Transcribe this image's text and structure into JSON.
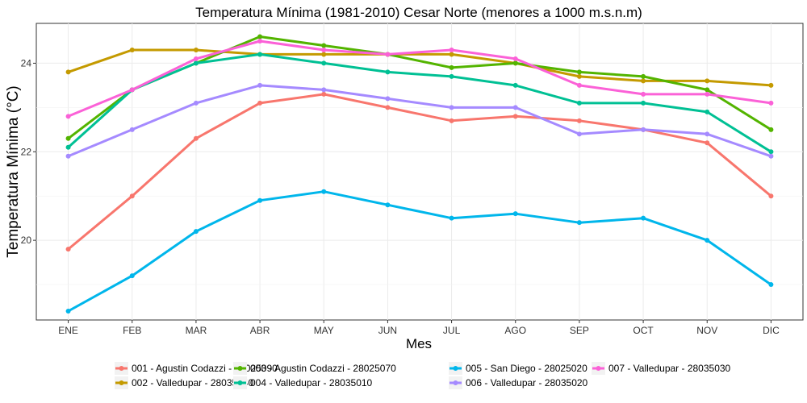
{
  "chart_data": {
    "type": "line",
    "title": "Temperatura Mínima (1981-2010) Cesar Norte (menores a 1000 m.s.n.m)",
    "xlabel": "Mes",
    "ylabel": "Temperatura Mínima (°C)",
    "categories": [
      "ENE",
      "FEB",
      "MAR",
      "ABR",
      "MAY",
      "JUN",
      "JUL",
      "AGO",
      "SEP",
      "OCT",
      "NOV",
      "DIC"
    ],
    "ylim": [
      18.2,
      24.9
    ],
    "yticks": [
      20,
      22,
      24
    ],
    "grid": true,
    "legend_position": "bottom",
    "series": [
      {
        "name": "001 - Agustin Codazzi - 28025090",
        "color": "#F8766D",
        "values": [
          19.8,
          21.0,
          22.3,
          23.1,
          23.3,
          23.0,
          22.7,
          22.8,
          22.7,
          22.5,
          22.2,
          21.0
        ]
      },
      {
        "name": "002 - Valledupar - 28035040",
        "color": "#C49A00",
        "values": [
          23.8,
          24.3,
          24.3,
          24.2,
          24.2,
          24.2,
          24.2,
          24.0,
          23.7,
          23.6,
          23.6,
          23.5
        ]
      },
      {
        "name": "003 - Agustin Codazzi - 28025070",
        "color": "#53B400",
        "values": [
          22.3,
          23.4,
          24.0,
          24.6,
          24.4,
          24.2,
          23.9,
          24.0,
          23.8,
          23.7,
          23.4,
          22.5
        ]
      },
      {
        "name": "004 - Valledupar - 28035010",
        "color": "#00C094",
        "values": [
          22.1,
          23.4,
          24.0,
          24.2,
          24.0,
          23.8,
          23.7,
          23.5,
          23.1,
          23.1,
          22.9,
          22.0
        ]
      },
      {
        "name": "005 - San Diego - 28025020",
        "color": "#00B6EB",
        "values": [
          18.4,
          19.2,
          20.2,
          20.9,
          21.1,
          20.8,
          20.5,
          20.6,
          20.4,
          20.5,
          20.0,
          19.0
        ]
      },
      {
        "name": "006 - Valledupar - 28035020",
        "color": "#A58AFF",
        "values": [
          21.9,
          22.5,
          23.1,
          23.5,
          23.4,
          23.2,
          23.0,
          23.0,
          22.4,
          22.5,
          22.4,
          21.9
        ]
      },
      {
        "name": "007 - Valledupar - 28035030",
        "color": "#FB61D7",
        "values": [
          22.8,
          23.4,
          24.1,
          24.5,
          24.3,
          24.2,
          24.3,
          24.1,
          23.5,
          23.3,
          23.3,
          23.1
        ]
      }
    ]
  }
}
